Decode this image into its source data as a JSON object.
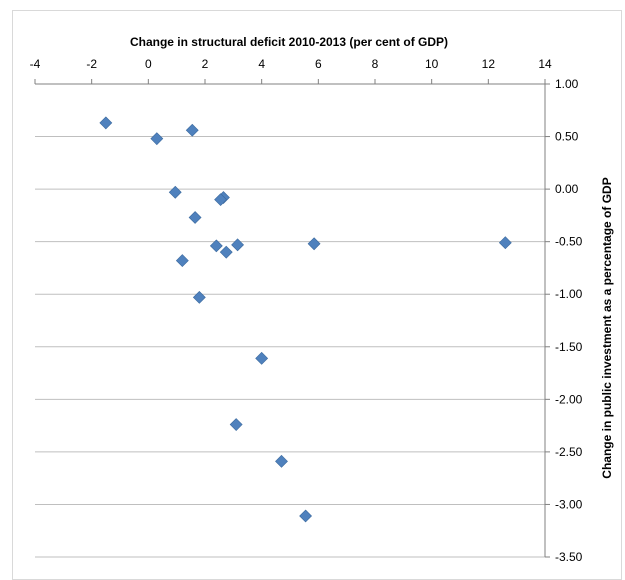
{
  "chart_data": {
    "type": "scatter",
    "title": "",
    "xlabel": "Change in structural deficit 2010-2013 (per cent of GDP)",
    "ylabel": "Change in public investment as a percentage of GDP",
    "xlim": [
      -4,
      14
    ],
    "ylim": [
      -3.5,
      1.0
    ],
    "x_ticks": [
      -4,
      -2,
      0,
      2,
      4,
      6,
      8,
      10,
      12,
      14
    ],
    "x_tick_labels": [
      "-4",
      "-2",
      "0",
      "2",
      "4",
      "6",
      "8",
      "10",
      "12",
      "14"
    ],
    "y_ticks": [
      1.0,
      0.5,
      0.0,
      -0.5,
      -1.0,
      -1.5,
      -2.0,
      -2.5,
      -3.0,
      -3.5
    ],
    "y_tick_labels": [
      "1.00",
      "0.50",
      "0.00",
      "-0.50",
      "-1.00",
      "-1.50",
      "-2.00",
      "-2.50",
      "-3.00",
      "-3.50"
    ],
    "x_axis_position": "top",
    "y_axis_position": "right",
    "grid": "horizontal",
    "marker": "diamond",
    "marker_color": "#4f81bd",
    "grid_color": "#bfbfbf",
    "axis_color": "#808080",
    "points": [
      {
        "x": -1.5,
        "y": 0.63
      },
      {
        "x": 0.3,
        "y": 0.48
      },
      {
        "x": 1.55,
        "y": 0.56
      },
      {
        "x": 0.95,
        "y": -0.03
      },
      {
        "x": 2.65,
        "y": -0.08
      },
      {
        "x": 2.55,
        "y": -0.1
      },
      {
        "x": 1.65,
        "y": -0.27
      },
      {
        "x": 2.4,
        "y": -0.54
      },
      {
        "x": 3.15,
        "y": -0.53
      },
      {
        "x": 2.75,
        "y": -0.6
      },
      {
        "x": 5.85,
        "y": -0.52
      },
      {
        "x": 12.6,
        "y": -0.51
      },
      {
        "x": 1.2,
        "y": -0.68
      },
      {
        "x": 1.8,
        "y": -1.03
      },
      {
        "x": 4.0,
        "y": -1.61
      },
      {
        "x": 3.1,
        "y": -2.24
      },
      {
        "x": 4.7,
        "y": -2.59
      },
      {
        "x": 5.55,
        "y": -3.11
      }
    ]
  }
}
